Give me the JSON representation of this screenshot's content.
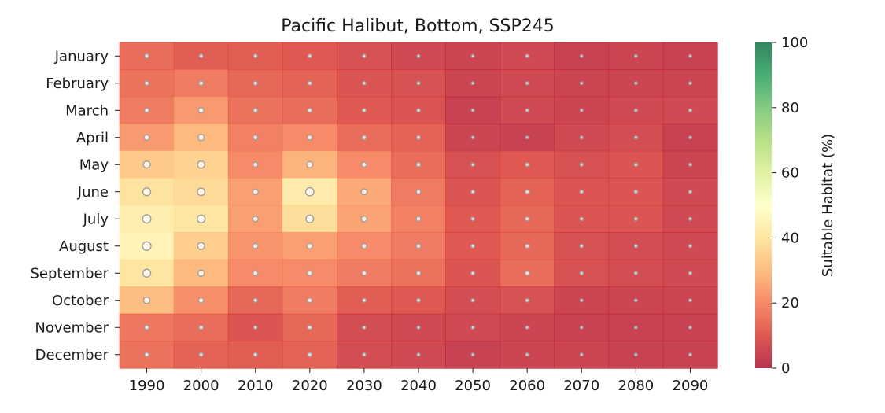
{
  "chart_data": {
    "type": "heatmap",
    "title": "Pacific Halibut, Bottom, SSP245",
    "x": [
      "1990",
      "2000",
      "2010",
      "2020",
      "2030",
      "2040",
      "2050",
      "2060",
      "2070",
      "2080",
      "2090"
    ],
    "y": [
      "January",
      "February",
      "March",
      "April",
      "May",
      "June",
      "July",
      "August",
      "September",
      "October",
      "November",
      "December"
    ],
    "values": [
      [
        14,
        11,
        11,
        10,
        8,
        6,
        5,
        6,
        4,
        5,
        4
      ],
      [
        15,
        17,
        13,
        12,
        9,
        8,
        5,
        6,
        5,
        5,
        5
      ],
      [
        17,
        23,
        15,
        14,
        10,
        9,
        4,
        6,
        5,
        6,
        6
      ],
      [
        23,
        29,
        18,
        20,
        14,
        12,
        5,
        4,
        6,
        7,
        4
      ],
      [
        33,
        35,
        20,
        28,
        20,
        14,
        8,
        10,
        8,
        9,
        5
      ],
      [
        39,
        37,
        24,
        42,
        26,
        17,
        9,
        12,
        9,
        9,
        6
      ],
      [
        43,
        40,
        24,
        38,
        25,
        18,
        10,
        13,
        9,
        9,
        6
      ],
      [
        45,
        34,
        22,
        24,
        20,
        17,
        10,
        13,
        8,
        7,
        6
      ],
      [
        40,
        29,
        20,
        20,
        17,
        15,
        9,
        14,
        8,
        7,
        6
      ],
      [
        30,
        21,
        13,
        17,
        11,
        10,
        7,
        8,
        5,
        5,
        5
      ],
      [
        16,
        14,
        9,
        13,
        7,
        6,
        6,
        5,
        4,
        4,
        4
      ],
      [
        15,
        12,
        11,
        12,
        7,
        6,
        4,
        5,
        5,
        4,
        4
      ]
    ],
    "colorbar": {
      "label": "Suitable Habitat (%)",
      "range": [
        0,
        100
      ],
      "ticks": [
        0,
        20,
        40,
        60,
        80,
        100
      ],
      "colormap": [
        "#a50026",
        "#d73027",
        "#f46d43",
        "#fdae61",
        "#fee08b",
        "#ffffbf",
        "#d9ef8b",
        "#a6d96a",
        "#66bd63",
        "#1a9850",
        "#006837"
      ]
    },
    "markers": {
      "fill": "#ffffff",
      "stroke": "#9e9e9e"
    },
    "grid": false
  }
}
